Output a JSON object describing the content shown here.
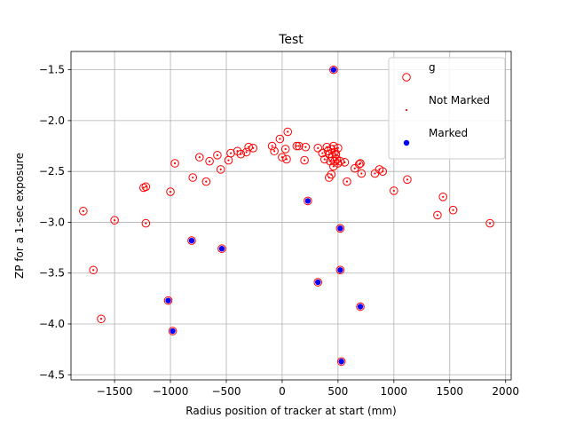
{
  "chart_data": {
    "type": "scatter",
    "title": "Test",
    "xlabel": "Radius position of tracker at start (mm)",
    "ylabel": "ZP for a 1-sec exposure",
    "xlim": [
      -1890,
      2050
    ],
    "ylim": [
      -4.55,
      -1.32
    ],
    "xticks": [
      -1500,
      -1000,
      -500,
      0,
      500,
      1000,
      1500,
      2000
    ],
    "xtick_labels": [
      "−1500",
      "−1000",
      "−500",
      "0",
      "500",
      "1000",
      "1500",
      "2000"
    ],
    "yticks": [
      -1.5,
      -2.0,
      -2.5,
      -3.0,
      -3.5,
      -4.0,
      -4.5
    ],
    "ytick_labels": [
      "−1.5",
      "−2.0",
      "−2.5",
      "−3.0",
      "−3.5",
      "−4.0",
      "−4.5"
    ],
    "grid": true,
    "legend_position": "top-right",
    "colors": {
      "g": "#ff0000",
      "not_marked": "#ff0000",
      "marked": "#0000ff"
    },
    "series": [
      {
        "name": "g",
        "marker": "open-circle",
        "points": [
          [
            -1780,
            -2.89
          ],
          [
            -1690,
            -3.47
          ],
          [
            -1620,
            -3.95
          ],
          [
            -1500,
            -2.98
          ],
          [
            -1240,
            -2.66
          ],
          [
            -1220,
            -2.65
          ],
          [
            -1220,
            -3.01
          ],
          [
            -1000,
            -2.7
          ],
          [
            -960,
            -2.42
          ],
          [
            -800,
            -2.56
          ],
          [
            -740,
            -2.36
          ],
          [
            -680,
            -2.6
          ],
          [
            -650,
            -2.4
          ],
          [
            -580,
            -2.34
          ],
          [
            -550,
            -2.48
          ],
          [
            -480,
            -2.39
          ],
          [
            -460,
            -2.32
          ],
          [
            -400,
            -2.3
          ],
          [
            -370,
            -2.33
          ],
          [
            -320,
            -2.31
          ],
          [
            -300,
            -2.26
          ],
          [
            -260,
            -2.27
          ],
          [
            -90,
            -2.25
          ],
          [
            -70,
            -2.3
          ],
          [
            -20,
            -2.18
          ],
          [
            0,
            -2.36
          ],
          [
            30,
            -2.28
          ],
          [
            40,
            -2.38
          ],
          [
            50,
            -2.11
          ],
          [
            130,
            -2.25
          ],
          [
            150,
            -2.25
          ],
          [
            200,
            -2.39
          ],
          [
            210,
            -2.26
          ],
          [
            320,
            -2.27
          ],
          [
            360,
            -2.32
          ],
          [
            380,
            -2.38
          ],
          [
            400,
            -2.26
          ],
          [
            410,
            -2.3
          ],
          [
            420,
            -2.56
          ],
          [
            420,
            -2.33
          ],
          [
            430,
            -2.4
          ],
          [
            440,
            -2.28
          ],
          [
            440,
            -2.53
          ],
          [
            450,
            -2.36
          ],
          [
            460,
            -2.45
          ],
          [
            460,
            -2.25
          ],
          [
            470,
            -2.31
          ],
          [
            470,
            -2.4
          ],
          [
            480,
            -2.33
          ],
          [
            490,
            -2.38
          ],
          [
            500,
            -2.27
          ],
          [
            500,
            -2.42
          ],
          [
            520,
            -2.4
          ],
          [
            560,
            -2.41
          ],
          [
            580,
            -2.6
          ],
          [
            650,
            -2.47
          ],
          [
            690,
            -2.43
          ],
          [
            700,
            -2.42
          ],
          [
            710,
            -2.52
          ],
          [
            830,
            -2.52
          ],
          [
            870,
            -2.48
          ],
          [
            900,
            -2.5
          ],
          [
            1000,
            -2.69
          ],
          [
            1120,
            -2.58
          ],
          [
            1390,
            -2.93
          ],
          [
            1440,
            -2.75
          ],
          [
            1530,
            -2.88
          ],
          [
            1860,
            -3.01
          ],
          [
            -1020,
            -3.77
          ],
          [
            -980,
            -4.07
          ],
          [
            -810,
            -3.18
          ],
          [
            -540,
            -3.26
          ],
          [
            230,
            -2.79
          ],
          [
            320,
            -3.59
          ],
          [
            460,
            -1.5
          ],
          [
            520,
            -3.06
          ],
          [
            520,
            -3.47
          ],
          [
            530,
            -4.37
          ],
          [
            700,
            -3.83
          ]
        ]
      },
      {
        "name": "Not Marked",
        "marker": "dot",
        "points": [
          [
            -1780,
            -2.89
          ],
          [
            -1690,
            -3.47
          ],
          [
            -1620,
            -3.95
          ],
          [
            -1500,
            -2.98
          ],
          [
            -1240,
            -2.66
          ],
          [
            -1220,
            -2.65
          ],
          [
            -1220,
            -3.01
          ],
          [
            -1000,
            -2.7
          ],
          [
            -960,
            -2.42
          ],
          [
            -800,
            -2.56
          ],
          [
            -740,
            -2.36
          ],
          [
            -680,
            -2.6
          ],
          [
            -650,
            -2.4
          ],
          [
            -580,
            -2.34
          ],
          [
            -550,
            -2.48
          ],
          [
            -480,
            -2.39
          ],
          [
            -460,
            -2.32
          ],
          [
            -400,
            -2.3
          ],
          [
            -370,
            -2.33
          ],
          [
            -320,
            -2.31
          ],
          [
            -300,
            -2.26
          ],
          [
            -260,
            -2.27
          ],
          [
            -90,
            -2.25
          ],
          [
            -70,
            -2.3
          ],
          [
            -20,
            -2.18
          ],
          [
            0,
            -2.36
          ],
          [
            30,
            -2.28
          ],
          [
            40,
            -2.38
          ],
          [
            50,
            -2.11
          ],
          [
            130,
            -2.25
          ],
          [
            150,
            -2.25
          ],
          [
            200,
            -2.39
          ],
          [
            210,
            -2.26
          ],
          [
            320,
            -2.27
          ],
          [
            360,
            -2.32
          ],
          [
            380,
            -2.38
          ],
          [
            400,
            -2.26
          ],
          [
            410,
            -2.3
          ],
          [
            420,
            -2.56
          ],
          [
            420,
            -2.33
          ],
          [
            430,
            -2.4
          ],
          [
            440,
            -2.28
          ],
          [
            440,
            -2.53
          ],
          [
            450,
            -2.36
          ],
          [
            460,
            -2.45
          ],
          [
            460,
            -2.25
          ],
          [
            470,
            -2.31
          ],
          [
            470,
            -2.4
          ],
          [
            480,
            -2.33
          ],
          [
            490,
            -2.38
          ],
          [
            500,
            -2.27
          ],
          [
            500,
            -2.42
          ],
          [
            520,
            -2.4
          ],
          [
            560,
            -2.41
          ],
          [
            580,
            -2.6
          ],
          [
            650,
            -2.47
          ],
          [
            690,
            -2.43
          ],
          [
            700,
            -2.42
          ],
          [
            710,
            -2.52
          ],
          [
            830,
            -2.52
          ],
          [
            870,
            -2.48
          ],
          [
            900,
            -2.5
          ],
          [
            1000,
            -2.69
          ],
          [
            1120,
            -2.58
          ],
          [
            1390,
            -2.93
          ],
          [
            1440,
            -2.75
          ],
          [
            1530,
            -2.88
          ],
          [
            1860,
            -3.01
          ]
        ]
      },
      {
        "name": "Marked",
        "marker": "filled-circle",
        "points": [
          [
            -1020,
            -3.77
          ],
          [
            -980,
            -4.07
          ],
          [
            -810,
            -3.18
          ],
          [
            -540,
            -3.26
          ],
          [
            230,
            -2.79
          ],
          [
            320,
            -3.59
          ],
          [
            460,
            -1.5
          ],
          [
            520,
            -3.06
          ],
          [
            520,
            -3.47
          ],
          [
            530,
            -4.37
          ],
          [
            700,
            -3.83
          ]
        ]
      }
    ]
  }
}
